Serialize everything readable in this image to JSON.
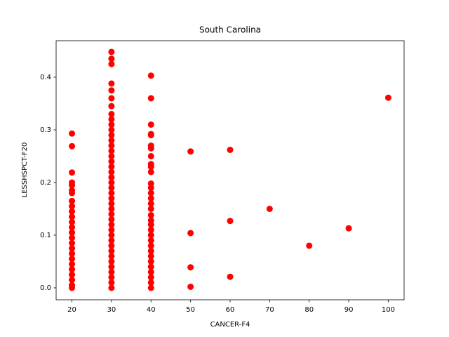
{
  "chart_data": {
    "type": "scatter",
    "title": "South Carolina",
    "xlabel": "CANCER-F4",
    "ylabel": "LESSHSPCT-F20",
    "color": "#ff0000",
    "x": [
      20,
      20,
      20,
      20,
      20,
      20,
      20,
      20,
      20,
      20,
      20,
      20,
      20,
      20,
      20,
      20,
      20,
      20,
      20,
      20,
      20,
      20,
      20,
      20,
      20,
      30,
      30,
      30,
      30,
      30,
      30,
      30,
      30,
      30,
      30,
      30,
      30,
      30,
      30,
      30,
      30,
      30,
      30,
      30,
      30,
      30,
      30,
      30,
      30,
      30,
      30,
      30,
      30,
      30,
      30,
      30,
      30,
      30,
      30,
      30,
      30,
      30,
      30,
      30,
      30,
      30,
      40,
      40,
      40,
      40,
      40,
      40,
      40,
      40,
      40,
      40,
      40,
      40,
      40,
      40,
      40,
      40,
      40,
      40,
      40,
      40,
      40,
      40,
      40,
      40,
      40,
      40,
      40,
      40,
      40,
      40,
      40,
      40,
      50,
      50,
      50,
      50,
      60,
      60,
      60,
      70,
      80,
      90,
      100
    ],
    "y": [
      0.293,
      0.269,
      0.219,
      0.2,
      0.195,
      0.185,
      0.18,
      0.165,
      0.155,
      0.145,
      0.135,
      0.125,
      0.115,
      0.105,
      0.095,
      0.085,
      0.075,
      0.065,
      0.055,
      0.045,
      0.035,
      0.025,
      0.015,
      0.005,
      0,
      0.448,
      0.435,
      0.425,
      0.388,
      0.375,
      0.36,
      0.345,
      0.33,
      0.32,
      0.31,
      0.3,
      0.29,
      0.28,
      0.27,
      0.26,
      0.25,
      0.24,
      0.23,
      0.22,
      0.21,
      0.2,
      0.19,
      0.18,
      0.17,
      0.16,
      0.15,
      0.14,
      0.13,
      0.12,
      0.11,
      0.1,
      0.09,
      0.08,
      0.07,
      0.06,
      0.05,
      0.04,
      0.03,
      0.02,
      0.01,
      0,
      0.403,
      0.36,
      0.31,
      0.292,
      0.29,
      0.27,
      0.265,
      0.25,
      0.235,
      0.23,
      0.22,
      0.198,
      0.19,
      0.18,
      0.17,
      0.16,
      0.15,
      0.138,
      0.128,
      0.12,
      0.11,
      0.1,
      0.09,
      0.08,
      0.07,
      0.06,
      0.05,
      0.04,
      0.03,
      0.02,
      0.01,
      0,
      0.259,
      0.104,
      0.039,
      0.002,
      0.262,
      0.127,
      0.021,
      0.15,
      0.08,
      0.113,
      0.361
    ],
    "xlim": [
      16,
      104
    ],
    "ylim": [
      -0.0227,
      0.4693
    ],
    "xticks": [
      20,
      30,
      40,
      50,
      60,
      70,
      80,
      90,
      100
    ],
    "yticks": [
      {
        "value": 0,
        "label": "0.0"
      },
      0.1,
      0.2,
      0.3,
      0.4
    ]
  }
}
